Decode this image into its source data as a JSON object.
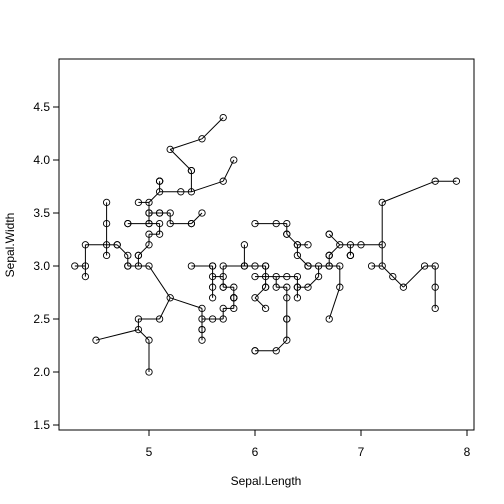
{
  "chart_data": {
    "type": "scatter",
    "title": "",
    "xlabel": "Sepal.Length",
    "ylabel": "Sepal.Width",
    "xlim": [
      4.2,
      8.0
    ],
    "ylim": [
      1.4,
      4.9
    ],
    "x_ticks": [
      5,
      6,
      7,
      8
    ],
    "x_tick_labels": [
      "5",
      "6",
      "7",
      "8"
    ],
    "y_ticks": [
      1.5,
      2.0,
      2.5,
      3.0,
      3.5,
      4.0,
      4.5
    ],
    "y_tick_labels": [
      "1.5",
      "2.0",
      "2.5",
      "3.0",
      "3.5",
      "4.0",
      "4.5"
    ],
    "grid": false,
    "legend": "none",
    "marker": "open-circle",
    "points": [
      [
        5.1,
        3.5
      ],
      [
        4.9,
        3.0
      ],
      [
        4.7,
        3.2
      ],
      [
        4.6,
        3.1
      ],
      [
        5.0,
        3.6
      ],
      [
        5.4,
        3.9
      ],
      [
        4.6,
        3.4
      ],
      [
        5.0,
        3.4
      ],
      [
        4.4,
        2.9
      ],
      [
        4.9,
        3.1
      ],
      [
        5.4,
        3.7
      ],
      [
        4.8,
        3.4
      ],
      [
        4.8,
        3.0
      ],
      [
        4.3,
        3.0
      ],
      [
        5.8,
        4.0
      ],
      [
        5.7,
        4.4
      ],
      [
        5.4,
        3.9
      ],
      [
        5.1,
        3.5
      ],
      [
        5.7,
        3.8
      ],
      [
        5.1,
        3.8
      ],
      [
        5.4,
        3.4
      ],
      [
        5.1,
        3.7
      ],
      [
        4.6,
        3.6
      ],
      [
        5.1,
        3.3
      ],
      [
        4.8,
        3.4
      ],
      [
        5.0,
        3.0
      ],
      [
        5.0,
        3.4
      ],
      [
        5.2,
        3.5
      ],
      [
        5.2,
        3.4
      ],
      [
        4.7,
        3.2
      ],
      [
        4.8,
        3.1
      ],
      [
        5.4,
        3.4
      ],
      [
        5.2,
        4.1
      ],
      [
        5.5,
        4.2
      ],
      [
        4.9,
        3.1
      ],
      [
        5.0,
        3.2
      ],
      [
        5.5,
        3.5
      ],
      [
        4.9,
        3.6
      ],
      [
        4.4,
        3.0
      ],
      [
        5.1,
        3.4
      ],
      [
        5.0,
        3.5
      ],
      [
        4.5,
        2.3
      ],
      [
        4.4,
        3.2
      ],
      [
        5.0,
        3.5
      ],
      [
        5.1,
        3.8
      ],
      [
        4.8,
        3.0
      ],
      [
        5.1,
        3.8
      ],
      [
        4.6,
        3.2
      ],
      [
        5.3,
        3.7
      ],
      [
        5.0,
        3.3
      ],
      [
        7.0,
        3.2
      ],
      [
        6.4,
        3.2
      ],
      [
        6.9,
        3.1
      ],
      [
        5.5,
        2.3
      ],
      [
        6.5,
        2.8
      ],
      [
        5.7,
        2.8
      ],
      [
        6.3,
        3.3
      ],
      [
        4.9,
        2.4
      ],
      [
        6.6,
        2.9
      ],
      [
        5.2,
        2.7
      ],
      [
        5.0,
        2.0
      ],
      [
        5.9,
        3.0
      ],
      [
        6.0,
        2.2
      ],
      [
        6.1,
        2.9
      ],
      [
        5.6,
        2.9
      ],
      [
        6.7,
        3.1
      ],
      [
        5.6,
        3.0
      ],
      [
        5.8,
        2.7
      ],
      [
        6.2,
        2.2
      ],
      [
        5.6,
        2.5
      ],
      [
        5.9,
        3.2
      ],
      [
        6.1,
        2.8
      ],
      [
        6.3,
        2.5
      ],
      [
        6.1,
        2.8
      ],
      [
        6.4,
        2.9
      ],
      [
        6.6,
        3.0
      ],
      [
        6.8,
        2.8
      ],
      [
        6.7,
        3.0
      ],
      [
        6.0,
        2.9
      ],
      [
        5.7,
        2.6
      ],
      [
        5.5,
        2.4
      ],
      [
        5.5,
        2.4
      ],
      [
        5.8,
        2.7
      ],
      [
        6.0,
        2.7
      ],
      [
        5.4,
        3.0
      ],
      [
        6.0,
        3.4
      ],
      [
        6.7,
        3.1
      ],
      [
        6.3,
        2.3
      ],
      [
        5.6,
        3.0
      ],
      [
        5.5,
        2.5
      ],
      [
        5.5,
        2.6
      ],
      [
        6.1,
        3.0
      ],
      [
        5.8,
        2.6
      ],
      [
        5.0,
        2.3
      ],
      [
        5.6,
        2.7
      ],
      [
        5.7,
        3.0
      ],
      [
        5.7,
        2.9
      ],
      [
        6.2,
        2.9
      ],
      [
        5.1,
        2.5
      ],
      [
        5.7,
        2.8
      ],
      [
        6.3,
        3.3
      ],
      [
        5.8,
        2.7
      ],
      [
        7.1,
        3.0
      ],
      [
        6.3,
        2.9
      ],
      [
        6.5,
        3.0
      ],
      [
        7.6,
        3.0
      ],
      [
        4.9,
        2.5
      ],
      [
        7.3,
        2.9
      ],
      [
        6.7,
        2.5
      ],
      [
        7.2,
        3.6
      ],
      [
        6.5,
        3.2
      ],
      [
        6.4,
        2.7
      ],
      [
        6.8,
        3.0
      ],
      [
        5.7,
        2.5
      ],
      [
        5.8,
        2.8
      ],
      [
        6.4,
        3.2
      ],
      [
        6.5,
        3.0
      ],
      [
        7.7,
        3.8
      ],
      [
        7.7,
        2.6
      ],
      [
        6.0,
        2.2
      ],
      [
        6.9,
        3.2
      ],
      [
        5.6,
        2.8
      ],
      [
        7.7,
        2.8
      ],
      [
        6.3,
        2.7
      ],
      [
        6.7,
        3.3
      ],
      [
        7.2,
        3.2
      ],
      [
        6.2,
        2.8
      ],
      [
        6.1,
        3.0
      ],
      [
        6.4,
        2.8
      ],
      [
        7.2,
        3.0
      ],
      [
        7.4,
        2.8
      ],
      [
        7.9,
        3.8
      ],
      [
        6.4,
        2.8
      ],
      [
        6.3,
        2.8
      ],
      [
        6.1,
        2.6
      ],
      [
        7.7,
        3.0
      ],
      [
        6.3,
        3.4
      ],
      [
        6.4,
        3.1
      ],
      [
        6.0,
        3.0
      ],
      [
        6.9,
        3.1
      ],
      [
        6.7,
        3.1
      ],
      [
        6.9,
        3.1
      ],
      [
        5.8,
        2.7
      ],
      [
        6.8,
        3.2
      ],
      [
        6.7,
        3.3
      ],
      [
        6.7,
        3.0
      ],
      [
        6.3,
        2.5
      ],
      [
        6.5,
        3.0
      ],
      [
        6.2,
        3.4
      ],
      [
        5.9,
        3.0
      ]
    ]
  }
}
